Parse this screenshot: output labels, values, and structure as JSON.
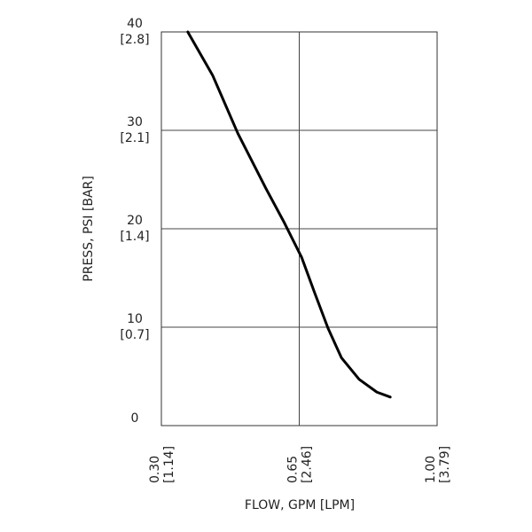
{
  "chart_data": {
    "type": "line",
    "x_label": "FLOW, GPM [LPM]",
    "y_label": "PRESS, PSI [BAR]",
    "x": [
      0.367,
      0.43,
      0.494,
      0.566,
      0.611,
      0.656,
      0.689,
      0.723,
      0.757,
      0.802,
      0.847,
      0.881
    ],
    "series": [
      {
        "color": "#000000",
        "values": [
          40,
          35.6,
          29.7,
          24.05,
          20.7,
          17.1,
          13.5,
          9.9,
          6.9,
          4.7,
          3.4,
          2.9
        ]
      }
    ],
    "xlim": [
      0.3,
      1.0
    ],
    "xticks": [
      {
        "value": 0.3,
        "label": "0.30 [1.14]"
      },
      {
        "value": 0.65,
        "label": "0.65 [2.46]"
      },
      {
        "value": 1.0,
        "label": "1.00 [3.79]"
      }
    ],
    "ylim": [
      0,
      40
    ],
    "yticks": [
      0,
      {
        "value": 10,
        "label": "10 [0.7]"
      },
      {
        "value": 20,
        "label": "20 [1.4]"
      },
      {
        "value": 30,
        "label": "30 [2.1]"
      },
      {
        "value": 40,
        "label": "40 [2.8]"
      }
    ],
    "grid": true
  }
}
